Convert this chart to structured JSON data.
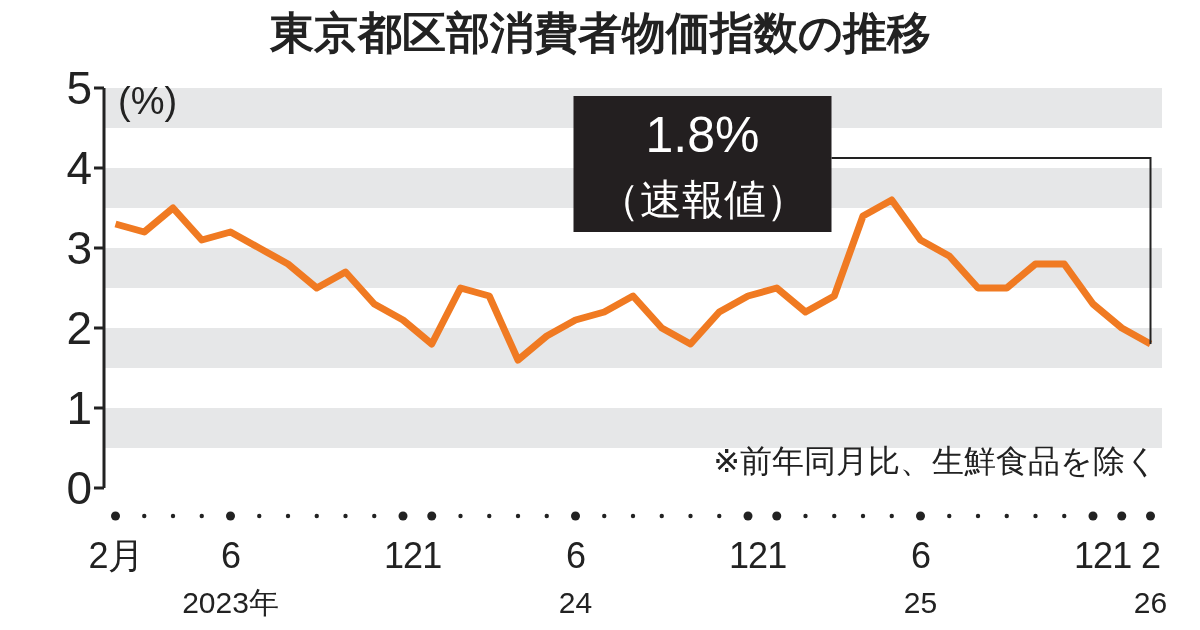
{
  "chart_data": {
    "type": "line",
    "title": "東京都区部消費者物価指数の推移",
    "ylabel": "(%)",
    "categories": [
      "2月",
      null,
      null,
      null,
      "6",
      null,
      null,
      null,
      null,
      null,
      "12",
      "1",
      null,
      null,
      null,
      null,
      "6",
      null,
      null,
      null,
      null,
      null,
      "12",
      "1",
      null,
      null,
      null,
      null,
      "6",
      null,
      null,
      null,
      null,
      null,
      "12",
      "1",
      "2"
    ],
    "series": [
      {
        "color": "#f07a22",
        "values": [
          3.3,
          3.2,
          3.5,
          3.1,
          3.2,
          3.0,
          2.8,
          2.5,
          2.7,
          2.3,
          2.1,
          1.8,
          2.5,
          2.4,
          1.6,
          1.9,
          2.1,
          2.2,
          2.4,
          2.0,
          1.8,
          2.2,
          2.4,
          2.5,
          2.2,
          2.4,
          3.4,
          3.6,
          3.1,
          2.9,
          2.5,
          2.5,
          2.8,
          2.8,
          2.3,
          2.0,
          1.8
        ]
      }
    ],
    "ylim": [
      0,
      5
    ],
    "yticks": [
      0,
      1,
      2,
      3,
      4,
      5
    ],
    "marker": "none",
    "line_style": "solid",
    "bands": [
      {
        "axis": "y",
        "from": 0.5,
        "to": 1,
        "color": "#e6e7e8"
      },
      {
        "axis": "y",
        "from": 1.5,
        "to": 2,
        "color": "#e6e7e8"
      },
      {
        "axis": "y",
        "from": 2.5,
        "to": 3,
        "color": "#e6e7e8"
      },
      {
        "axis": "y",
        "from": 3.5,
        "to": 4,
        "color": "#e6e7e8"
      },
      {
        "axis": "y",
        "from": 4.5,
        "to": 5,
        "color": "#e6e7e8"
      }
    ],
    "annotations": [
      {
        "text": "1.8%\n（速報値）",
        "x": "2",
        "y": 1.8
      },
      "※前年同月比、生鮮食品を除く",
      "2023年",
      "24",
      "25",
      "26"
    ]
  }
}
